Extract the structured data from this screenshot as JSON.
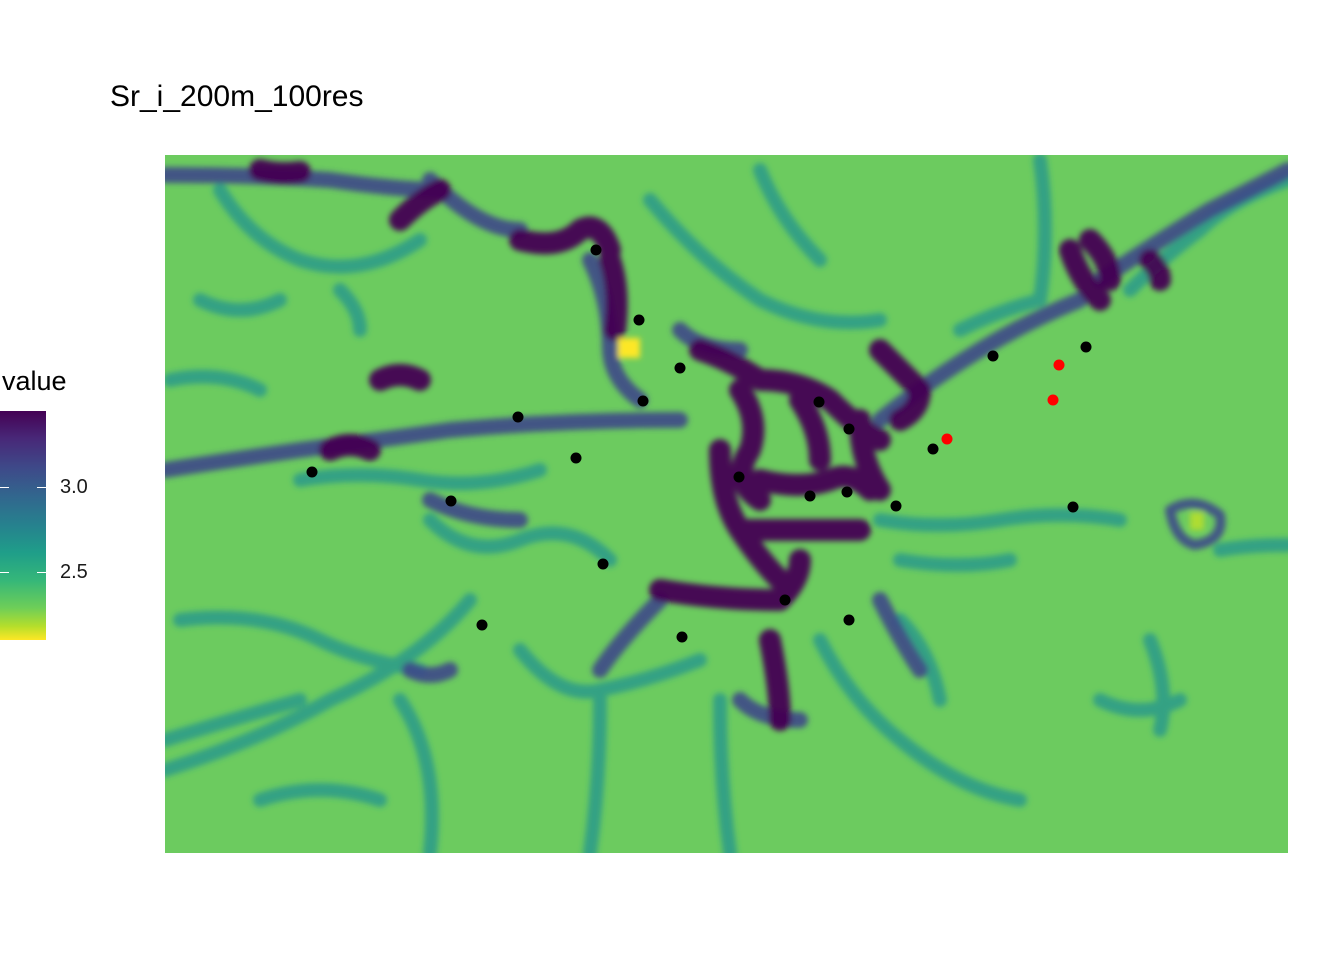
{
  "title": "Sr_i_200m_100res",
  "legend": {
    "title": "value",
    "ticks": [
      {
        "label": "3.0",
        "value": 3.0
      },
      {
        "label": "2.5",
        "value": 2.5
      }
    ],
    "range": [
      2.1,
      3.45
    ],
    "palette": "viridis-reversed",
    "colors": [
      "#440154",
      "#3e4a89",
      "#26828e",
      "#35b779",
      "#6ece58",
      "#fde725"
    ]
  },
  "map_colors": {
    "background": "#6ccb5f",
    "low_mid": "#3fbc73",
    "mid": "#2a9a8a",
    "mid_high": "#31688e",
    "high": "#3b2f74",
    "max": "#440154",
    "min": "#fde725"
  },
  "point_colors": {
    "black": "#000000",
    "red": "#ff0000"
  }
}
